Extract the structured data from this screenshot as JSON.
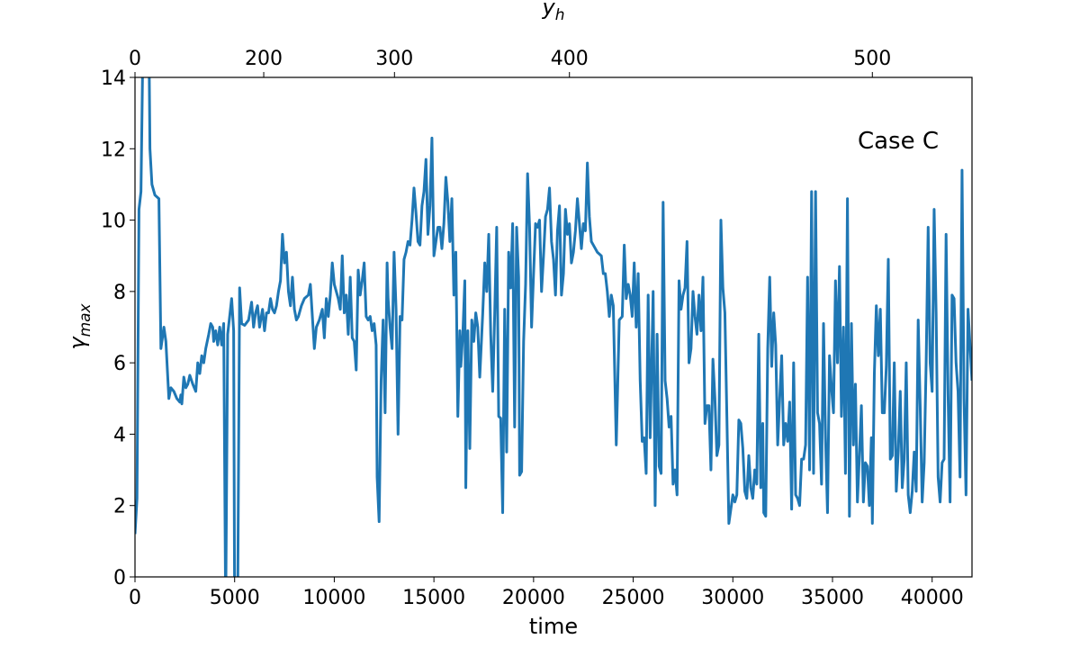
{
  "chart_data": {
    "type": "line",
    "annotation": "Case C",
    "xlabel": "time",
    "ylabel": {
      "base": "γ",
      "sub": "max"
    },
    "x2label": {
      "base": "y",
      "sub": "h"
    },
    "color": "#1f77b4",
    "xlim": [
      0,
      42000
    ],
    "ylim": [
      0,
      14
    ],
    "xticks": [
      0,
      5000,
      10000,
      15000,
      20000,
      25000,
      30000,
      35000,
      40000
    ],
    "yticks": [
      0,
      2,
      4,
      6,
      8,
      10,
      12,
      14
    ],
    "x2ticks": [
      0,
      200,
      300,
      400,
      500
    ],
    "x2tick_times": [
      0,
      6460,
      13020,
      21800,
      37000
    ],
    "x": [
      0,
      100,
      200,
      300,
      400,
      700,
      750,
      850,
      1000,
      1200,
      1300,
      1450,
      1550,
      1700,
      1800,
      1950,
      2100,
      2250,
      2300,
      2350,
      2450,
      2550,
      2650,
      2750,
      2900,
      3050,
      3150,
      3250,
      3350,
      3450,
      3550,
      3700,
      3800,
      3900,
      3950,
      4050,
      4150,
      4250,
      4350,
      4450,
      4550,
      4650,
      4750,
      4850,
      4950,
      5000,
      5150,
      5250,
      5350,
      5500,
      5700,
      5850,
      5950,
      6050,
      6150,
      6250,
      6400,
      6500,
      6600,
      6700,
      6800,
      6900,
      7000,
      7100,
      7200,
      7300,
      7400,
      7500,
      7600,
      7700,
      7800,
      7900,
      8000,
      8100,
      8200,
      8350,
      8500,
      8700,
      8800,
      8900,
      9000,
      9100,
      9250,
      9400,
      9500,
      9600,
      9700,
      9800,
      9900,
      10000,
      10100,
      10200,
      10300,
      10400,
      10500,
      10600,
      10700,
      10800,
      10900,
      11000,
      11100,
      11200,
      11300,
      11400,
      11500,
      11600,
      11700,
      11800,
      11900,
      12000,
      12100,
      12150,
      12250,
      12350,
      12450,
      12550,
      12650,
      12700,
      12800,
      12900,
      13000,
      13100,
      13200,
      13300,
      13400,
      13500,
      13600,
      13700,
      13800,
      13900,
      14000,
      14100,
      14200,
      14300,
      14400,
      14500,
      14600,
      14700,
      14800,
      14900,
      15000,
      15100,
      15200,
      15300,
      15400,
      15500,
      15600,
      15700,
      15800,
      15900,
      16000,
      16100,
      16200,
      16300,
      16350,
      16450,
      16550,
      16600,
      16700,
      16800,
      16900,
      17000,
      17100,
      17200,
      17300,
      17450,
      17550,
      17650,
      17750,
      17850,
      17950,
      18050,
      18150,
      18250,
      18350,
      18450,
      18550,
      18650,
      18750,
      18850,
      18950,
      19050,
      19150,
      19250,
      19300,
      19400,
      19500,
      19600,
      19700,
      19800,
      19900,
      20000,
      20100,
      20200,
      20300,
      20400,
      20500,
      20600,
      20700,
      20800,
      20900,
      21000,
      21100,
      21200,
      21300,
      21400,
      21500,
      21600,
      21700,
      21800,
      21900,
      22000,
      22100,
      22200,
      22300,
      22400,
      22500,
      22600,
      22700,
      22800,
      22900,
      23000,
      23200,
      23400,
      23500,
      23600,
      23700,
      23800,
      23900,
      24000,
      24150,
      24300,
      24450,
      24550,
      24650,
      24750,
      24850,
      24950,
      25050,
      25150,
      25250,
      25350,
      25450,
      25550,
      25650,
      25750,
      25850,
      26000,
      26100,
      26200,
      26300,
      26400,
      26500,
      26600,
      26700,
      26800,
      26900,
      27000,
      27100,
      27200,
      27300,
      27400,
      27500,
      27600,
      27700,
      27800,
      27900,
      28000,
      28100,
      28200,
      28300,
      28400,
      28500,
      28600,
      28700,
      28800,
      28900,
      29000,
      29100,
      29200,
      29300,
      29400,
      29500,
      29600,
      29700,
      29800,
      29900,
      30000,
      30100,
      30200,
      30300,
      30400,
      30500,
      30600,
      30700,
      30800,
      30900,
      31000,
      31100,
      31200,
      31300,
      31400,
      31500,
      31550,
      31650,
      31750,
      31850,
      31950,
      32050,
      32150,
      32250,
      32350,
      32450,
      32550,
      32650,
      32750,
      32850,
      32950,
      33050,
      33150,
      33250,
      33350,
      33450,
      33550,
      33650,
      33750,
      33850,
      33950,
      34050,
      34150,
      34250,
      34350,
      34450,
      34550,
      34650,
      34750,
      34850,
      34950,
      35050,
      35150,
      35250,
      35350,
      35450,
      35550,
      35650,
      35750,
      35850,
      35950,
      36050,
      36150,
      36250,
      36350,
      36450,
      36550,
      36650,
      36750,
      36850,
      36950,
      37000,
      37100,
      37200,
      37300,
      37400,
      37500,
      37600,
      37700,
      37800,
      37900,
      38000,
      38100,
      38200,
      38300,
      38400,
      38500,
      38600,
      38700,
      38800,
      38900,
      39000,
      39100,
      39200,
      39300,
      39400,
      39500,
      39600,
      39700,
      39800,
      39900,
      40000,
      40100,
      40200,
      40300,
      40400,
      40500,
      40600,
      40700,
      40800,
      40900,
      41000,
      41100,
      41200,
      41300,
      41400,
      41500,
      41600,
      41700,
      41800,
      42000
    ],
    "values": [
      1.2,
      2.2,
      10.3,
      10.8,
      15,
      15,
      12,
      11,
      10.7,
      10.6,
      6.4,
      7.0,
      6.6,
      5.0,
      5.3,
      5.2,
      5.0,
      4.9,
      5.1,
      4.85,
      5.6,
      5.3,
      5.4,
      5.65,
      5.4,
      5.2,
      6.0,
      5.7,
      6.2,
      6.0,
      6.4,
      6.8,
      7.1,
      7.0,
      6.6,
      6.9,
      6.5,
      7.0,
      6.5,
      7.1,
      -1,
      6.8,
      7.3,
      7.8,
      6.9,
      -1,
      -1,
      8.1,
      7.1,
      7.05,
      7.2,
      7.7,
      7.0,
      7.4,
      7.6,
      7.0,
      7.5,
      6.9,
      7.4,
      7.4,
      7.8,
      7.5,
      7.4,
      7.6,
      8.0,
      8.3,
      9.6,
      8.8,
      9.1,
      8.0,
      7.6,
      8.4,
      7.5,
      7.2,
      7.3,
      7.6,
      7.8,
      7.9,
      8.2,
      7.3,
      6.4,
      7.0,
      7.2,
      7.5,
      6.7,
      7.8,
      7.3,
      7.9,
      8.8,
      8.2,
      8.0,
      7.8,
      7.5,
      9.0,
      7.4,
      7.9,
      6.8,
      8.4,
      6.7,
      6.6,
      5.8,
      8.6,
      7.9,
      8.3,
      8.8,
      7.3,
      7.2,
      7.3,
      6.9,
      7.1,
      6.5,
      2.8,
      1.55,
      5.5,
      7.2,
      4.6,
      8.8,
      7.8,
      7.0,
      6.4,
      9.1,
      7.5,
      4.0,
      7.3,
      7.2,
      8.9,
      9.1,
      9.4,
      9.3,
      10.0,
      10.9,
      10.2,
      9.4,
      9.3,
      10.4,
      10.8,
      11.7,
      9.6,
      10.4,
      12.3,
      9.0,
      9.4,
      9.8,
      9.8,
      9.2,
      9.9,
      11.2,
      10.5,
      9.4,
      10.6,
      7.9,
      9.1,
      4.5,
      6.9,
      5.9,
      6.8,
      8.3,
      2.5,
      6.9,
      3.6,
      7.2,
      6.6,
      7.4,
      7.0,
      5.6,
      7.4,
      8.8,
      8.0,
      9.6,
      6.8,
      5.2,
      7.4,
      9.8,
      4.5,
      4.45,
      1.8,
      7.5,
      3.5,
      9.1,
      8.1,
      9.9,
      4.2,
      9.8,
      8.4,
      2.85,
      2.95,
      6.6,
      8.2,
      11.3,
      9.8,
      7.0,
      8.5,
      9.9,
      9.8,
      10.0,
      8.0,
      9.0,
      10.1,
      10.3,
      10.9,
      9.4,
      8.9,
      7.9,
      9.7,
      10.4,
      7.9,
      8.5,
      10.3,
      9.6,
      9.9,
      8.8,
      9.1,
      9.7,
      10.6,
      9.9,
      9.2,
      9.9,
      9.7,
      11.6,
      10.1,
      9.4,
      9.3,
      9.1,
      9.0,
      8.5,
      8.5,
      8.0,
      7.3,
      7.9,
      7.6,
      3.7,
      7.2,
      7.3,
      9.3,
      7.8,
      8.2,
      7.9,
      7.3,
      8.8,
      7.0,
      8.5,
      5.5,
      3.8,
      3.9,
      2.9,
      7.9,
      3.9,
      8.0,
      2.0,
      6.8,
      3.1,
      2.9,
      10.5,
      5.5,
      5.0,
      4.2,
      4.5,
      2.6,
      3.0,
      2.3,
      8.3,
      7.5,
      7.9,
      8.1,
      9.4,
      6.0,
      6.4,
      8.0,
      7.3,
      6.8,
      7.9,
      6.9,
      8.4,
      4.3,
      4.8,
      4.8,
      3.0,
      6.1,
      5.0,
      3.4,
      3.7,
      10.0,
      8.1,
      7.4,
      4.5,
      1.5,
      1.9,
      2.3,
      2.1,
      2.3,
      4.4,
      4.3,
      3.6,
      2.4,
      2.2,
      3.4,
      2.5,
      2.2,
      3.0,
      2.6,
      6.8,
      2.5,
      4.3,
      1.8,
      1.7,
      6.4,
      8.4,
      5.9,
      7.4,
      6.5,
      3.7,
      5.0,
      6.2,
      3.7,
      4.3,
      3.8,
      4.9,
      1.9,
      6.0,
      2.3,
      2.2,
      2.0,
      3.3,
      3.3,
      3.7,
      8.4,
      3.0,
      10.8,
      2.9,
      10.8,
      4.6,
      4.3,
      2.6,
      7.1,
      3.9,
      1.8,
      6.2,
      5.3,
      4.6,
      8.3,
      6.0,
      8.7,
      4.5,
      7.0,
      2.9,
      10.6,
      1.7,
      7.1,
      3.7,
      5.4,
      2.1,
      3.4,
      4.8,
      2.1,
      3.2,
      3.1,
      2.0,
      3.9,
      1.5,
      5.7,
      7.6,
      6.2,
      7.5,
      4.6,
      4.6,
      5.9,
      8.9,
      3.3,
      3.4,
      6.0,
      2.4,
      3.5,
      5.2,
      2.5,
      3.3,
      6.0,
      2.3,
      1.8,
      2.4,
      3.5,
      2.4,
      7.2,
      4.8,
      2.1,
      3.2,
      6.0,
      9.8,
      6.0,
      5.2,
      10.3,
      7.4,
      2.8,
      2.1,
      3.2,
      3.3,
      9.6,
      5.1,
      2.1,
      7.9,
      7.8,
      6.0,
      5.2,
      2.8,
      11.4,
      5.0,
      2.3,
      7.5,
      5.5
    ]
  }
}
